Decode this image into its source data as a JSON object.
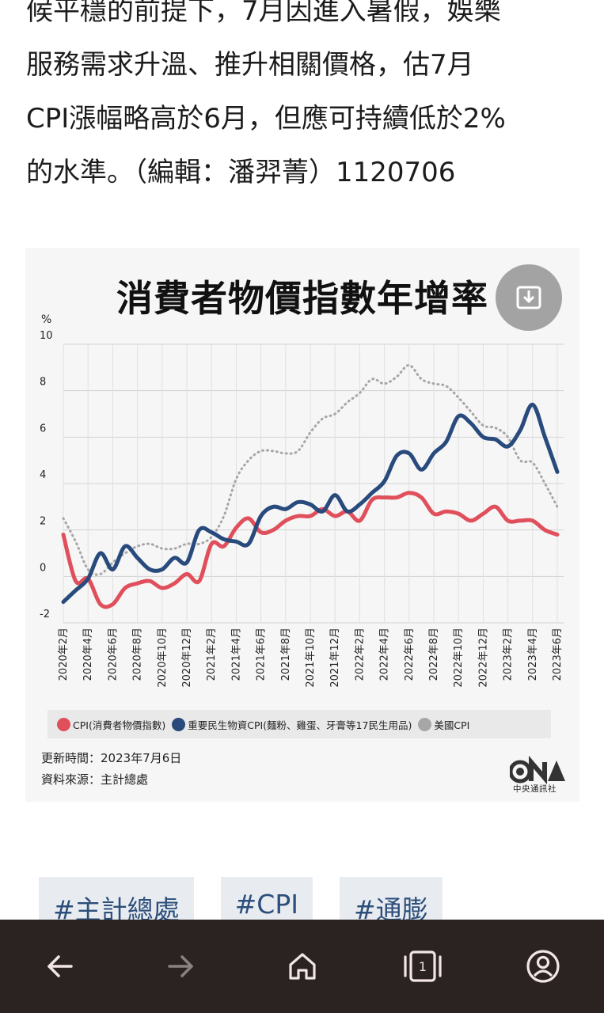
{
  "article": {
    "lines": [
      "候平穩的前提下，7月因進入暑假，娛樂",
      "服務需求升溫、推升相關價格，估7月",
      "CPI漲幅略高於6月，但應可持續低於2%",
      "的水準。（編輯：潘羿菁）1120706"
    ]
  },
  "figure": {
    "title": "消費者物價指數年增率",
    "save_icon": "download-icon",
    "updated": "更新時間：2023年7月6日",
    "source": "資料來源：主計總處",
    "logo_text": "CNA",
    "logo_sub": "中央通訊社",
    "legend": [
      {
        "label": "CPI(消費者物價指數)",
        "color": "#e0505c"
      },
      {
        "label": "重要民生物資CPI(麵粉、雞蛋、牙膏等17民生用品)",
        "color": "#284a7c"
      },
      {
        "label": "美國CPI",
        "color": "#a6a6a6"
      }
    ]
  },
  "chart_data": {
    "type": "line",
    "title": "消費者物價指數年增率",
    "ylabel": "%",
    "ylim": [
      -2,
      10
    ],
    "yticks": [
      "-2",
      "0",
      "2",
      "4",
      "6",
      "8",
      "10"
    ],
    "x": [
      "2020年2月",
      "2020年3月",
      "2020年4月",
      "2020年5月",
      "2020年6月",
      "2020年7月",
      "2020年8月",
      "2020年9月",
      "2020年10月",
      "2020年11月",
      "2020年12月",
      "2021年1月",
      "2021年2月",
      "2021年3月",
      "2021年4月",
      "2021年5月",
      "2021年6月",
      "2021年7月",
      "2021年8月",
      "2021年9月",
      "2021年10月",
      "2021年11月",
      "2021年12月",
      "2022年1月",
      "2022年2月",
      "2022年3月",
      "2022年4月",
      "2022年5月",
      "2022年6月",
      "2022年7月",
      "2022年8月",
      "2022年9月",
      "2022年10月",
      "2022年11月",
      "2022年12月",
      "2023年1月",
      "2023年2月",
      "2023年3月",
      "2023年4月",
      "2023年5月",
      "2023年6月"
    ],
    "x_tick_labels": [
      "2020年2月",
      "2020年4月",
      "2020年6月",
      "2020年8月",
      "2020年10月",
      "2020年12月",
      "2021年2月",
      "2021年4月",
      "2021年6月",
      "2021年8月",
      "2021年10月",
      "2021年12月",
      "2022年2月",
      "2022年4月",
      "2022年6月",
      "2022年8月",
      "2022年10月",
      "2022年12月",
      "2023年2月",
      "2023年4月",
      "2023年6月"
    ],
    "series": [
      {
        "name": "CPI(消費者物價指數)",
        "color": "#e0505c",
        "values": [
          1.8,
          -0.2,
          -0.1,
          -1.2,
          -1.2,
          -0.5,
          -0.3,
          -0.2,
          -0.5,
          -0.3,
          0.1,
          -0.2,
          1.4,
          1.3,
          2.1,
          2.5,
          1.9,
          2.0,
          2.4,
          2.6,
          2.6,
          2.9,
          2.6,
          2.8,
          2.4,
          3.3,
          3.4,
          3.4,
          3.6,
          3.4,
          2.7,
          2.8,
          2.7,
          2.4,
          2.7,
          3.0,
          2.4,
          2.4,
          2.4,
          2.0,
          1.8
        ]
      },
      {
        "name": "重要民生物資CPI(麵粉、雞蛋、牙膏等17民生用品)",
        "color": "#284a7c",
        "values": [
          -1.1,
          -0.6,
          -0.1,
          1.0,
          0.3,
          1.3,
          0.8,
          0.3,
          0.3,
          0.8,
          0.6,
          2.0,
          1.9,
          1.6,
          1.5,
          1.4,
          2.6,
          3.0,
          2.9,
          3.2,
          3.1,
          2.8,
          3.5,
          2.8,
          3.1,
          3.6,
          4.1,
          5.2,
          5.3,
          4.6,
          5.3,
          5.8,
          6.9,
          6.6,
          6.0,
          5.9,
          5.6,
          6.3,
          7.4,
          6.0,
          4.5
        ]
      },
      {
        "name": "美國CPI",
        "color": "#a6a6a6",
        "values": [
          2.5,
          1.5,
          0.3,
          0.1,
          0.6,
          1.0,
          1.3,
          1.4,
          1.2,
          1.2,
          1.4,
          1.4,
          1.7,
          2.6,
          4.2,
          5.0,
          5.4,
          5.4,
          5.3,
          5.4,
          6.2,
          6.8,
          7.0,
          7.5,
          7.9,
          8.5,
          8.3,
          8.6,
          9.1,
          8.5,
          8.3,
          8.2,
          7.7,
          7.1,
          6.5,
          6.4,
          6.0,
          5.0,
          4.9,
          4.0,
          3.0
        ]
      }
    ],
    "grid": true,
    "legend_position": "bottom"
  },
  "tags": [
    "#主計總處",
    "#CPI",
    "#通膨"
  ],
  "nav": {
    "back_icon": "back-arrow-icon",
    "forward_icon": "forward-arrow-icon",
    "home_icon": "home-icon",
    "tabs_count": "1",
    "profile_icon": "profile-icon"
  }
}
